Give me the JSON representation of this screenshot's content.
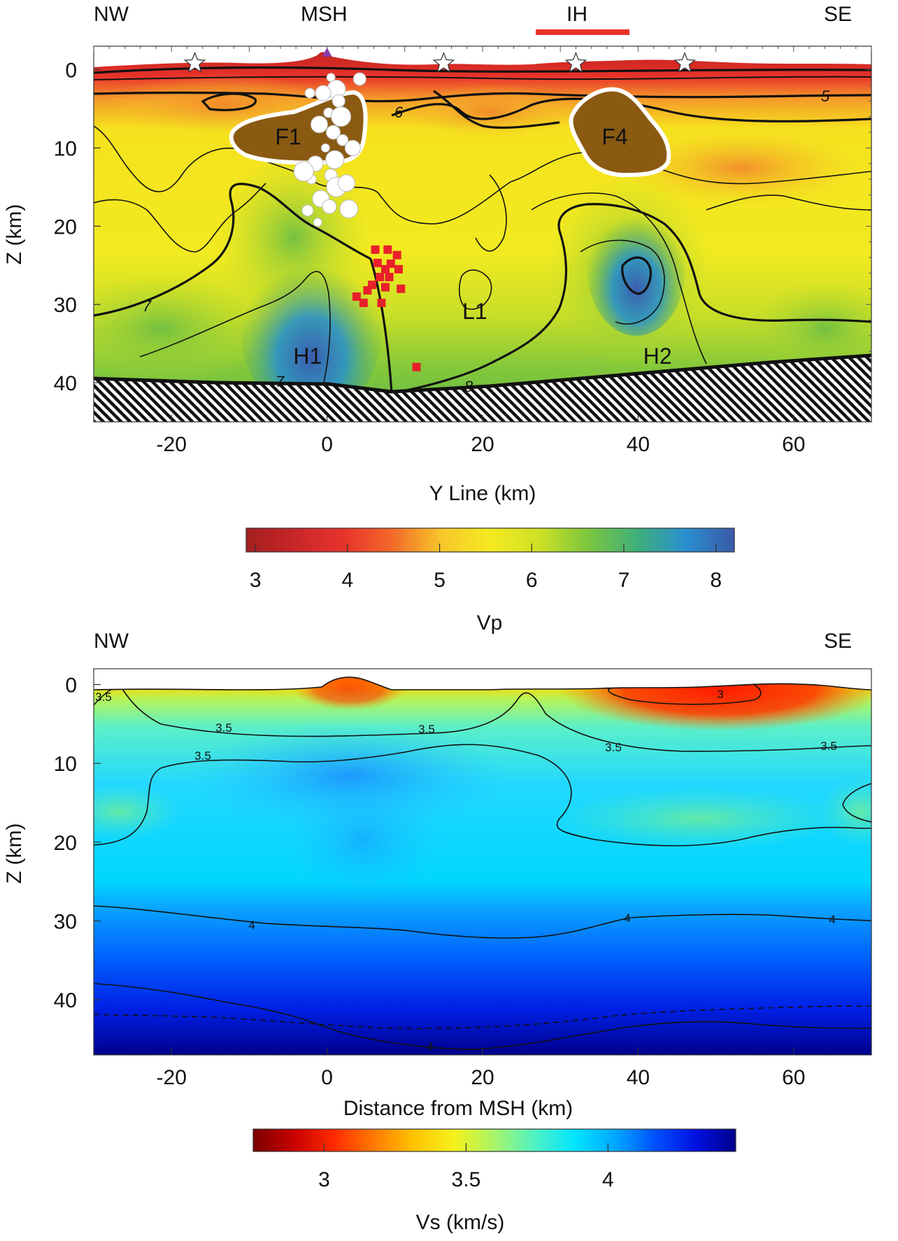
{
  "chart_data": [
    {
      "type": "heatmap",
      "orientation": {
        "left": "NW",
        "right": "SE"
      },
      "top_labels": {
        "volcano": "MSH",
        "segment": "IH",
        "segment_color": "#e8322a"
      },
      "xlabel": "Y Line (km)",
      "ylabel": "Z (km)",
      "x_ticks": [
        "-20",
        "0",
        "20",
        "40",
        "60"
      ],
      "y_ticks": [
        "0",
        "10",
        "20",
        "30",
        "40"
      ],
      "xlim": [
        -30,
        70
      ],
      "ylim": [
        45,
        -3
      ],
      "colorbar": {
        "label": "Vp",
        "ticks": [
          "3",
          "4",
          "5",
          "6",
          "7",
          "8"
        ],
        "range": [
          2.9,
          8.2
        ],
        "colors": [
          "#a31f1f",
          "#c8262a",
          "#e8332c",
          "#f26a2a",
          "#f7c62a",
          "#f5ea20",
          "#cfe025",
          "#7cc63d",
          "#3fb07a",
          "#2a8fd0",
          "#3a5aa8"
        ]
      },
      "contour_labels": [
        "5",
        "6",
        "7",
        "7",
        "8"
      ],
      "anomalies": [
        {
          "label": "F1",
          "x": -5,
          "z": 8.5
        },
        {
          "label": "F4",
          "x": 37,
          "z": 8.5
        },
        {
          "label": "L1",
          "x": 19,
          "z": 30.8
        },
        {
          "label": "H1",
          "x": -2.5,
          "z": 36.5
        },
        {
          "label": "H2",
          "x": 42.5,
          "z": 36.5
        }
      ],
      "stations_x": [
        -17,
        15,
        32,
        46
      ],
      "volcano_x": 0,
      "earthquakes_white": [
        [
          0.5,
          1
        ],
        [
          1.2,
          2.5
        ],
        [
          -0.5,
          3
        ],
        [
          1.5,
          4
        ],
        [
          0.2,
          5.5
        ],
        [
          1.8,
          6
        ],
        [
          -1,
          7
        ],
        [
          0.8,
          8
        ],
        [
          2,
          9
        ],
        [
          -0.2,
          10
        ],
        [
          1,
          11.5
        ],
        [
          -1.5,
          12
        ],
        [
          0.5,
          13.5
        ],
        [
          -2,
          14
        ],
        [
          1.2,
          15
        ],
        [
          -0.8,
          16.5
        ],
        [
          0.3,
          17.5
        ],
        [
          -2.5,
          18
        ],
        [
          -1.2,
          19.5
        ],
        [
          2.8,
          17.8
        ],
        [
          3.3,
          10
        ],
        [
          4.2,
          1.2
        ],
        [
          -2.2,
          3
        ],
        [
          -3,
          13
        ],
        [
          2.5,
          14.5
        ]
      ],
      "earthquakes_red": [
        [
          6.2,
          23
        ],
        [
          7.8,
          23
        ],
        [
          9,
          23.7
        ],
        [
          6.5,
          24.7
        ],
        [
          8.2,
          24.8
        ],
        [
          7.5,
          25.5
        ],
        [
          9.2,
          25.5
        ],
        [
          6.8,
          26.5
        ],
        [
          8,
          26.5
        ],
        [
          5.8,
          27.5
        ],
        [
          7.5,
          27.8
        ],
        [
          9.5,
          28
        ],
        [
          5.2,
          28.2
        ],
        [
          3.8,
          29
        ],
        [
          7,
          29.8
        ],
        [
          4.7,
          29.8
        ],
        [
          11.5,
          38
        ]
      ],
      "moho_depth_km": [
        [
          -30,
          40.3
        ],
        [
          -10,
          40.4
        ],
        [
          0,
          40.6
        ],
        [
          10,
          41.4
        ],
        [
          20,
          41.3
        ],
        [
          30,
          40.8
        ],
        [
          40,
          39.8
        ],
        [
          60,
          38.8
        ],
        [
          70,
          38
        ]
      ]
    },
    {
      "type": "heatmap",
      "orientation": {
        "left": "NW",
        "right": "SE"
      },
      "xlabel": "Distance from MSH (km)",
      "ylabel": "Z (km)",
      "x_ticks": [
        "-20",
        "0",
        "20",
        "40",
        "60"
      ],
      "y_ticks": [
        "0",
        "10",
        "20",
        "30",
        "40"
      ],
      "xlim": [
        -30,
        70
      ],
      "ylim": [
        47,
        -2
      ],
      "colorbar": {
        "label": "Vs (km/s)",
        "ticks": [
          "3",
          "3.5",
          "4"
        ],
        "range": [
          2.75,
          4.45
        ],
        "colors": [
          "#7a0000",
          "#c80000",
          "#ff2a00",
          "#ff7a00",
          "#ffc400",
          "#f4f21a",
          "#a8f56a",
          "#4ff2c4",
          "#00e5ff",
          "#00a8ff",
          "#0050ff",
          "#0010e0",
          "#00008c"
        ]
      },
      "contour_labels": [
        "3",
        "3.5",
        "3.5",
        "3.5",
        "3.5",
        "3.5",
        "3.5",
        "4",
        "4",
        "4",
        "4"
      ],
      "moho_dashed_km": [
        [
          -30,
          42
        ],
        [
          -10,
          42.5
        ],
        [
          0,
          43
        ],
        [
          10,
          44
        ],
        [
          20,
          43.6
        ],
        [
          35,
          42.8
        ],
        [
          50,
          41.7
        ],
        [
          70,
          40.6
        ]
      ]
    }
  ]
}
